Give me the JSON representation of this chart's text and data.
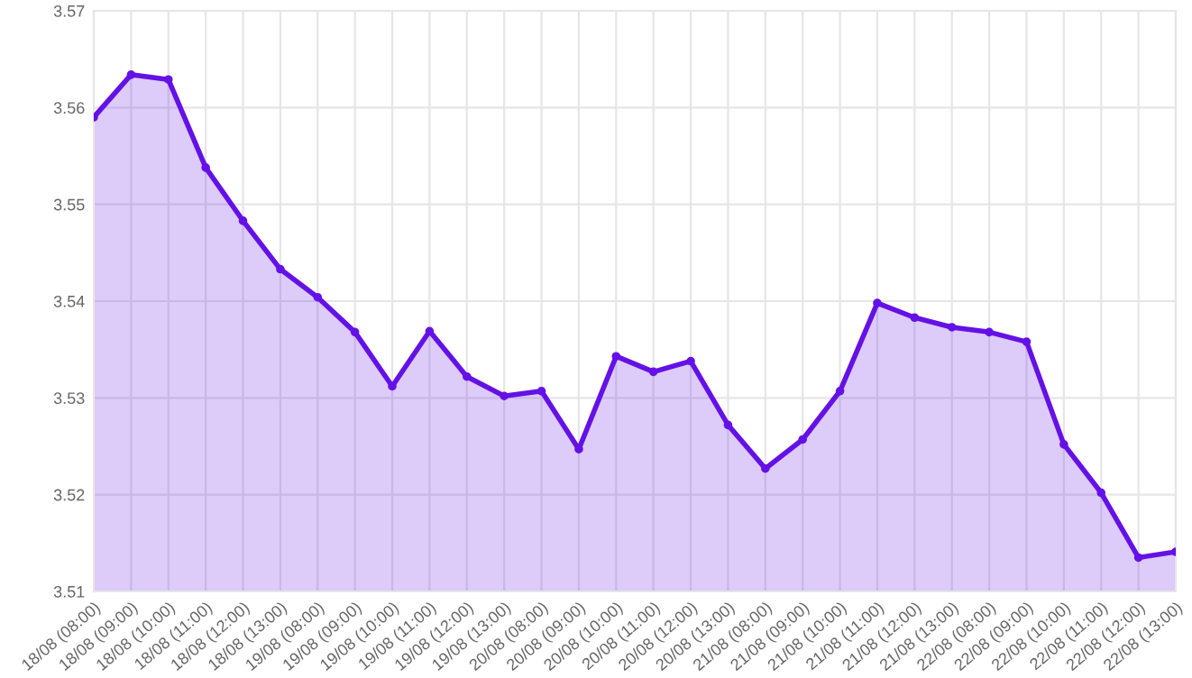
{
  "chart_data": {
    "type": "area",
    "categories": [
      "18/08 (08:00)",
      "18/08 (09:00)",
      "18/08 (10:00)",
      "18/08 (11:00)",
      "18/08 (12:00)",
      "18/08 (13:00)",
      "19/08 (08:00)",
      "19/08 (09:00)",
      "19/08 (10:00)",
      "19/08 (11:00)",
      "19/08 (12:00)",
      "19/08 (13:00)",
      "20/08 (08:00)",
      "20/08 (09:00)",
      "20/08 (10:00)",
      "20/08 (11:00)",
      "20/08 (12:00)",
      "20/08 (13:00)",
      "21/08 (08:00)",
      "21/08 (09:00)",
      "21/08 (10:00)",
      "21/08 (11:00)",
      "21/08 (12:00)",
      "21/08 (13:00)",
      "22/08 (08:00)",
      "22/08 (09:00)",
      "22/08 (10:00)",
      "22/08 (11:00)",
      "22/08 (12:00)",
      "22/08 (13:00)"
    ],
    "series": [
      {
        "color": "#6411e6",
        "values": [
          3.559,
          3.5634,
          3.5629,
          3.5538,
          3.5483,
          3.5433,
          3.5404,
          3.5368,
          3.5312,
          3.5369,
          3.5322,
          3.5302,
          3.5307,
          3.5247,
          3.5343,
          3.5327,
          3.5338,
          3.5272,
          3.5227,
          3.5257,
          3.5307,
          3.5398,
          3.5383,
          3.5373,
          3.5368,
          3.5358,
          3.5252,
          3.5202,
          3.5135,
          3.5141
        ]
      }
    ],
    "ylim": [
      3.51,
      3.57
    ],
    "yticks": [
      3.51,
      3.52,
      3.53,
      3.54,
      3.55,
      3.56,
      3.57
    ],
    "grid": true,
    "marker": "circle",
    "line_style": "solid"
  }
}
